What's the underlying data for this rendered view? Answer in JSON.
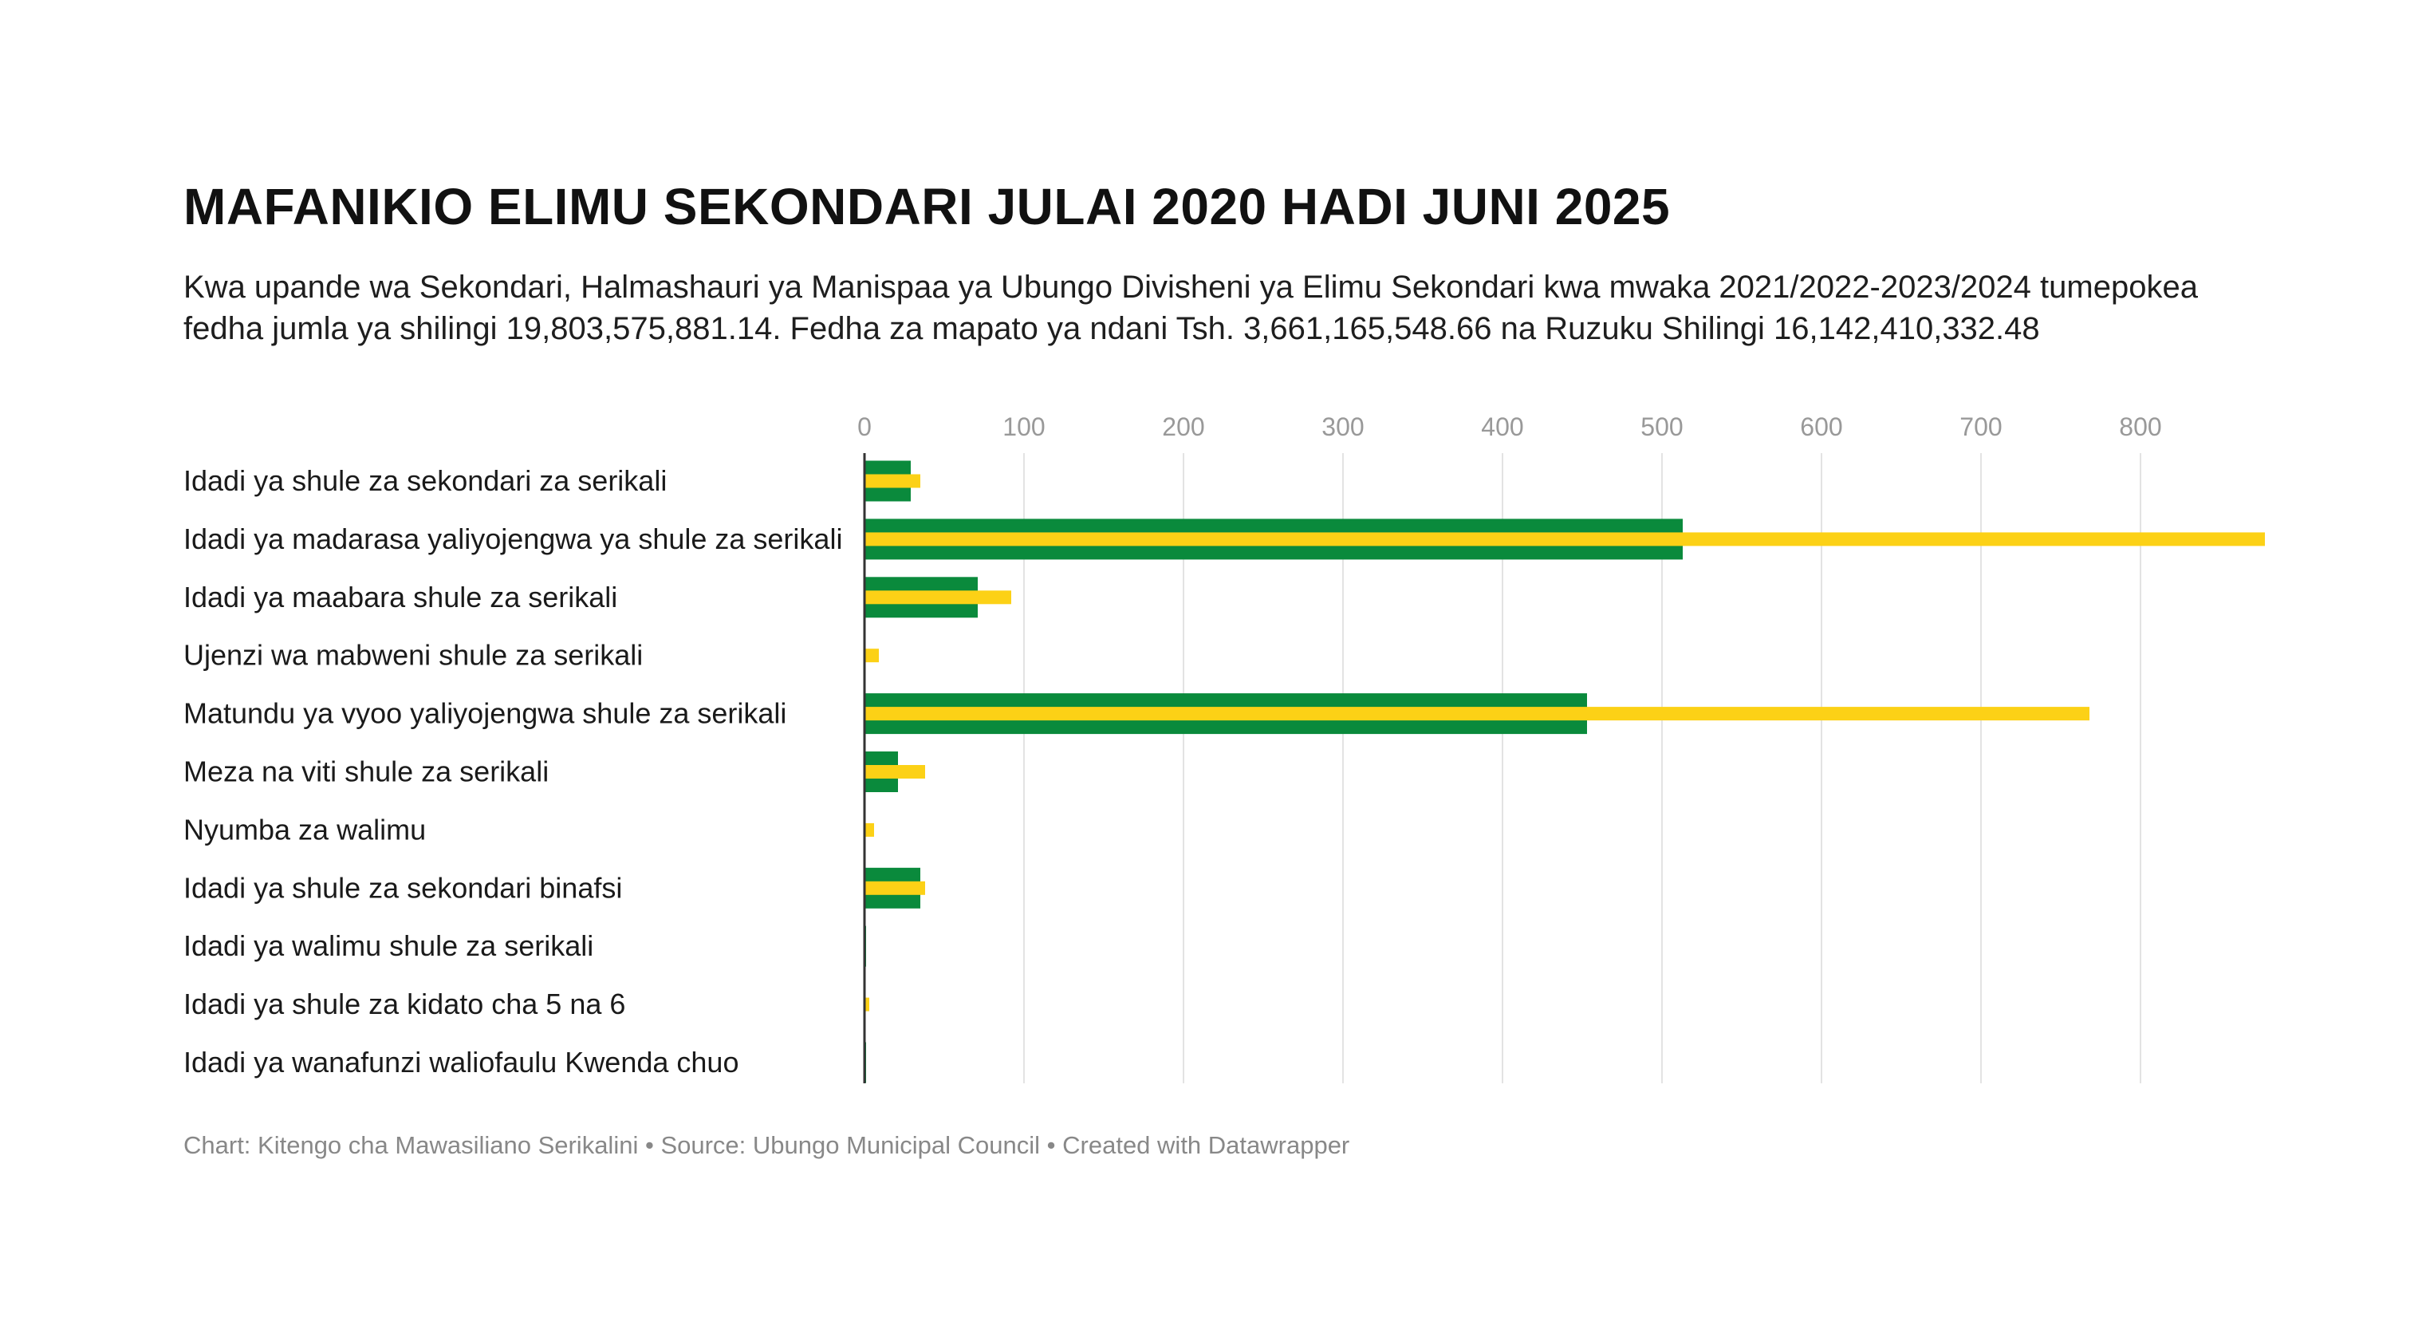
{
  "title": "MAFANIKIO ELIMU SEKONDARI JULAI 2020 HADI JUNI 2025",
  "subtitle": "Kwa upande wa Sekondari, Halmashauri ya Manispaa ya Ubungo Divisheni ya Elimu Sekondari kwa mwaka 2021/2022-2023/2024 tumepokea fedha jumla ya shilingi 19,803,575,881.14. Fedha za mapato ya ndani Tsh. 3,661,165,548.66 na Ruzuku Shilingi 16,142,410,332.48",
  "footer": {
    "chart_credit": "Chart: Kitengo cha Mawasiliano Serikalini",
    "source": "Source: Ubungo Municipal Council",
    "created_with": "Created with Datawrapper",
    "separator": " • "
  },
  "colors": {
    "series_green": "#0a8a3c",
    "series_yellow": "#fcd116",
    "gridline": "#e3e3e3",
    "axis_line": "#333333"
  },
  "chart_data": {
    "type": "bar",
    "orientation": "horizontal",
    "categories": [
      "Idadi ya shule za sekondari za serikali",
      "Idadi ya madarasa yaliyojengwa ya shule za serikali",
      "Idadi ya maabara shule za serikali",
      "Ujenzi wa mabweni shule za serikali",
      "Matundu ya vyoo yaliyojengwa shule za serikali",
      "Meza na viti shule za serikali",
      "Nyumba za walimu",
      "Idadi ya shule za sekondari binafsi",
      "Idadi ya walimu shule za serikali",
      "Idadi ya shule za kidato cha 5 na 6",
      "Idadi ya wanafunzi waliofaulu Kwenda chuo"
    ],
    "series": [
      {
        "color": "#0a8a3c",
        "values": [
          29,
          513,
          71,
          0,
          453,
          21,
          0,
          35,
          1,
          0,
          1
        ]
      },
      {
        "color": "#fcd116",
        "values": [
          35,
          878,
          92,
          9,
          768,
          38,
          6,
          38,
          0,
          3,
          0
        ]
      }
    ],
    "x_ticks": [
      "0",
      "100",
      "200",
      "300",
      "400",
      "500",
      "600",
      "700",
      "800"
    ],
    "xlim": [
      0,
      880
    ],
    "x_axis_position": "top",
    "grid": true,
    "legend": "none"
  }
}
